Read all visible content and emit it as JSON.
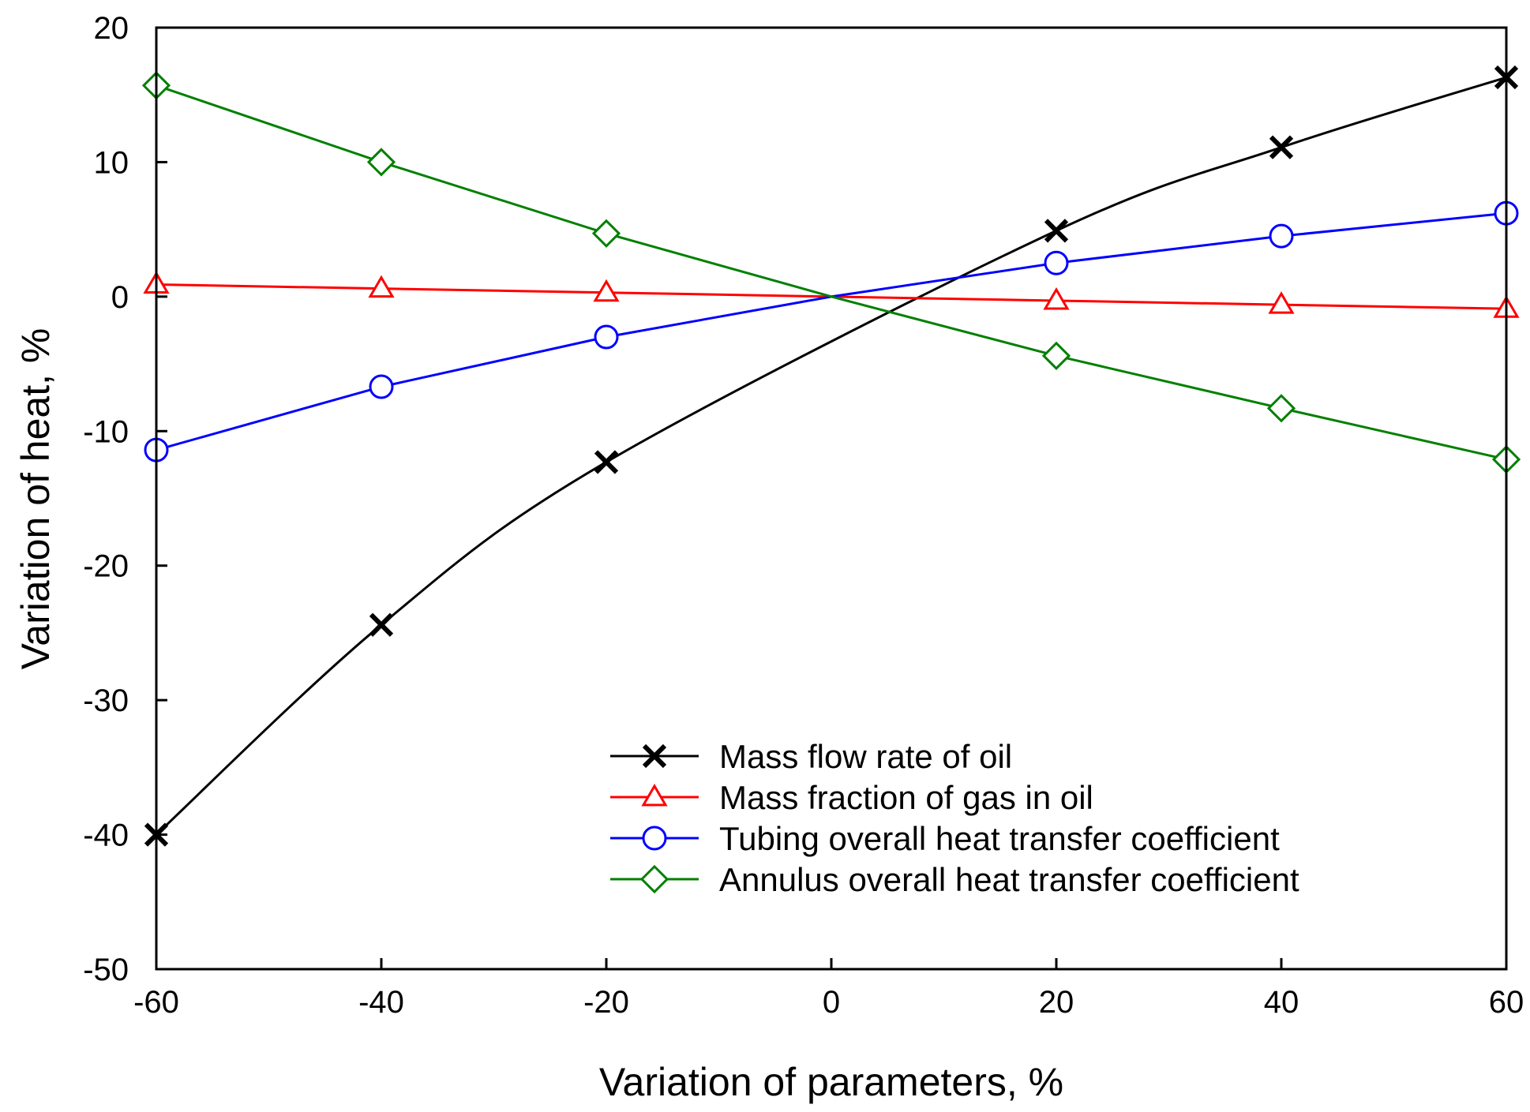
{
  "chart_data": {
    "type": "line",
    "title": "",
    "xlabel": "Variation of parameters, %",
    "ylabel": "Variation of heat, %",
    "xlim": [
      -60,
      60
    ],
    "ylim": [
      -50,
      20
    ],
    "x_ticks": [
      "-60",
      "-40",
      "-20",
      "0",
      "20",
      "40",
      "60"
    ],
    "y_ticks": [
      "-50",
      "-40",
      "-30",
      "-20",
      "-10",
      "0",
      "10",
      "20"
    ],
    "grid": false,
    "legend_position": "bottom-right",
    "series": [
      {
        "name": "Mass flow rate of oil",
        "color": "#000000",
        "marker": "x",
        "x": [
          -60,
          -40,
          -20,
          20,
          40,
          60
        ],
        "y": [
          -40.0,
          -24.4,
          -12.3,
          4.9,
          11.1,
          16.3
        ]
      },
      {
        "name": "Mass fraction of gas in oil",
        "color": "#ff0000",
        "marker": "triangle",
        "x": [
          -60,
          -40,
          -20,
          20,
          40,
          60
        ],
        "y": [
          0.9,
          0.6,
          0.3,
          -0.3,
          -0.6,
          -0.9
        ]
      },
      {
        "name": "Tubing overall heat transfer coefficient",
        "color": "#0000ff",
        "marker": "circle",
        "x": [
          -60,
          -40,
          -20,
          20,
          40,
          60
        ],
        "y": [
          -11.4,
          -6.7,
          -3.0,
          2.5,
          4.5,
          6.2
        ]
      },
      {
        "name": "Annulus overall heat transfer coefficient",
        "color": "#008000",
        "marker": "diamond",
        "x": [
          -60,
          -40,
          -20,
          20,
          40,
          60
        ],
        "y": [
          15.7,
          10.0,
          4.7,
          -4.4,
          -8.3,
          -12.1
        ]
      }
    ]
  }
}
